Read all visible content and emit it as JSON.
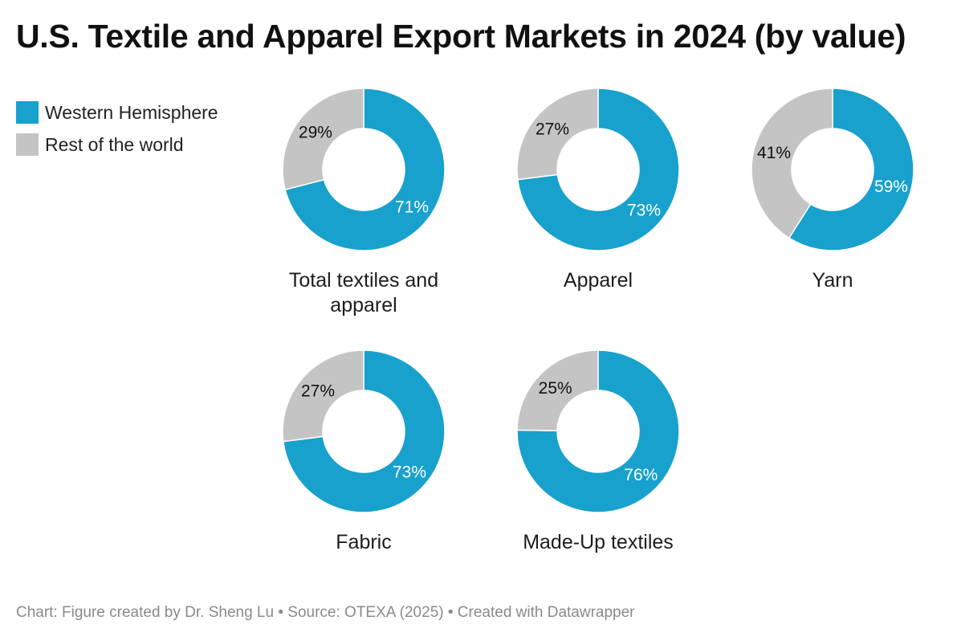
{
  "chart_data": {
    "type": "pie",
    "variant": "donut",
    "title": "U.S. Textile and Apparel Export Markets in 2024 (by value)",
    "legend": {
      "placement": "top-left",
      "entries": [
        "Western Hemisphere",
        "Rest of the world"
      ]
    },
    "colors": {
      "Western Hemisphere": "#18a1cd",
      "Rest of the world": "#c4c4c4"
    },
    "charts": [
      {
        "label": [
          "Total textiles and",
          "apparel"
        ],
        "values": {
          "Western Hemisphere": 71,
          "Rest of the world": 29
        }
      },
      {
        "label": [
          "Apparel"
        ],
        "values": {
          "Western Hemisphere": 73,
          "Rest of the world": 27
        }
      },
      {
        "label": [
          "Yarn"
        ],
        "values": {
          "Western Hemisphere": 59,
          "Rest of the world": 41
        }
      },
      {
        "label": [
          "Fabric"
        ],
        "values": {
          "Western Hemisphere": 73,
          "Rest of the world": 27
        }
      },
      {
        "label": [
          "Made-Up textiles"
        ],
        "values": {
          "Western Hemisphere": 76,
          "Rest of the world": 25
        }
      }
    ],
    "unit": "%"
  },
  "footer": "Chart: Figure created by Dr. Sheng Lu • Source: OTEXA (2025) • Created with Datawrapper"
}
